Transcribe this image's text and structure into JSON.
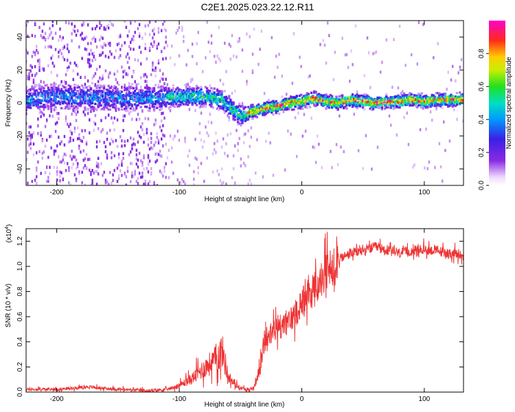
{
  "title": "C2E1.2025.023.22.12.R11",
  "chart_data": [
    {
      "type": "heatmap",
      "title": "",
      "xlabel": "Height of straight line (km)",
      "ylabel": "Frequency (Hz)",
      "xlim": [
        -225,
        132
      ],
      "ylim": [
        -50,
        50
      ],
      "xticks": [
        -200,
        -100,
        0,
        100
      ],
      "yticks": [
        -40,
        -20,
        0,
        20,
        40
      ],
      "colorbar": {
        "label": "Normalized spectral amplitude",
        "range": [
          0,
          1
        ],
        "ticks": [
          0.0,
          0.2,
          0.4,
          0.6,
          0.8
        ],
        "colormap": "rainbow (purple → blue → cyan → green → yellow → red → magenta)"
      },
      "ridge_center_hz": {
        "x": [
          -225,
          -200,
          -150,
          -120,
          -100,
          -80,
          -65,
          -55,
          -48,
          -40,
          -30,
          -20,
          -10,
          0,
          10,
          20,
          30,
          40,
          50,
          60,
          70,
          80,
          90,
          100,
          110,
          120,
          132
        ],
        "y": [
          2,
          4,
          3,
          3,
          4,
          4,
          2,
          -5,
          -8,
          -5,
          -3,
          -2,
          0,
          1,
          3,
          1,
          0,
          2,
          1,
          0,
          1,
          1,
          2,
          1,
          2,
          2,
          2
        ]
      },
      "grid": false
    },
    {
      "type": "line",
      "title": "",
      "xlabel": "Height of straight line (km)",
      "ylabel": "SNR (10 * v/v)",
      "y_scale_label": "(x10",
      "y_scale_exp": "4",
      "y_scale_close": ")",
      "xlim": [
        -225,
        132
      ],
      "ylim": [
        0,
        1.3
      ],
      "xticks": [
        -200,
        -100,
        0,
        100
      ],
      "yticks": [
        0.0,
        0.2,
        0.4,
        0.6,
        0.8,
        1.0,
        1.2
      ],
      "series": [
        {
          "color": "#ee3333",
          "x": [
            -225,
            -200,
            -175,
            -150,
            -125,
            -110,
            -100,
            -90,
            -80,
            -70,
            -65,
            -60,
            -55,
            -50,
            -45,
            -40,
            -35,
            -30,
            -20,
            -10,
            0,
            10,
            20,
            30,
            40,
            50,
            60,
            70,
            80,
            90,
            100,
            110,
            120,
            132
          ],
          "y": [
            0.02,
            0.02,
            0.04,
            0.02,
            0.01,
            0.02,
            0.05,
            0.1,
            0.18,
            0.25,
            0.32,
            0.12,
            0.06,
            0.03,
            0.02,
            0.02,
            0.15,
            0.4,
            0.5,
            0.55,
            0.7,
            0.8,
            0.92,
            1.05,
            1.1,
            1.12,
            1.15,
            1.12,
            1.1,
            1.12,
            1.13,
            1.12,
            1.1,
            1.08
          ]
        }
      ],
      "grid": false
    }
  ]
}
